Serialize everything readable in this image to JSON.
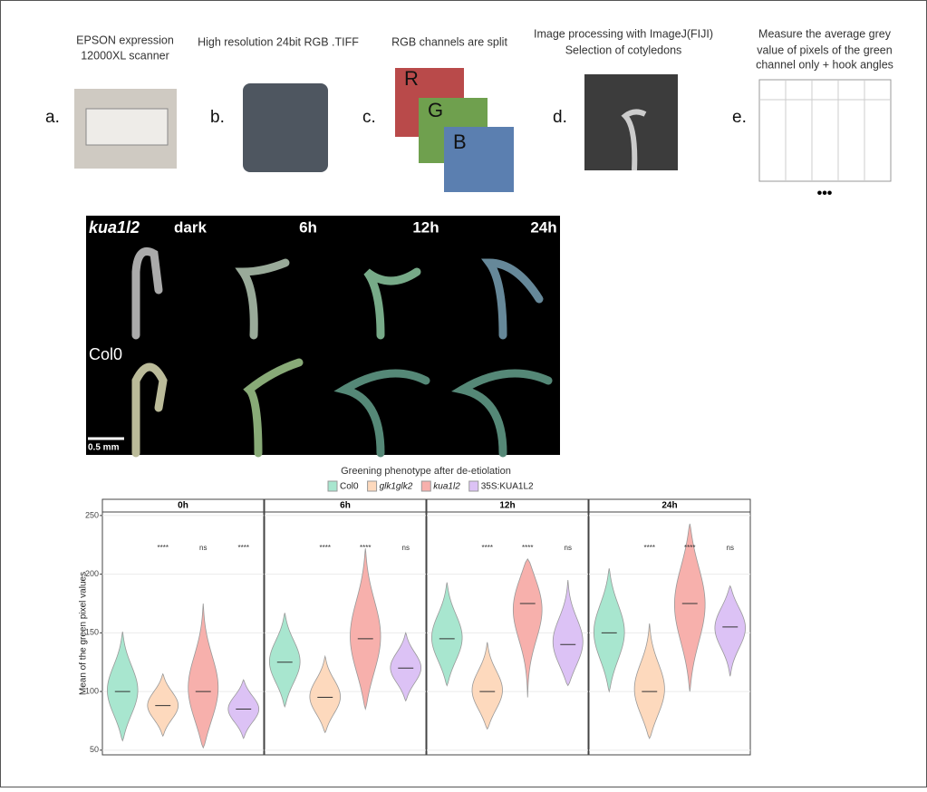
{
  "steps": [
    {
      "letter": "a.",
      "caption": [
        "EPSON expression",
        "12000XL scanner"
      ]
    },
    {
      "letter": "b.",
      "caption": [
        "High resolution 24bit RGB .TIFF"
      ]
    },
    {
      "letter": "c.",
      "caption": [
        "RGB channels are split"
      ],
      "channels": [
        "R",
        "G",
        "B"
      ]
    },
    {
      "letter": "d.",
      "caption": [
        "Image processing with ImageJ(FIJI)",
        "Selection of cotyledons"
      ]
    },
    {
      "letter": "e.",
      "caption": [
        "Measure the average grey",
        "value of pixels of the green",
        "channel only + hook angles"
      ],
      "more": "•••"
    }
  ],
  "photo": {
    "genotypes": [
      "kua1l2",
      "Col0"
    ],
    "timepoints": [
      "dark",
      "6h",
      "12h",
      "24h"
    ],
    "scale_bar": "0.5 mm"
  },
  "chart_data": {
    "type": "violin",
    "title": "Greening phenotype after de-etiolation",
    "facets": [
      "0h",
      "6h",
      "12h",
      "24h"
    ],
    "ylabel": "Mean of the green pixel values",
    "ylim": [
      46,
      253
    ],
    "yticks": [
      50,
      100,
      150,
      200,
      250
    ],
    "series": [
      {
        "name": "Col0",
        "color": "#a8e6cf",
        "min": [
          58,
          87,
          105,
          100
        ],
        "median": [
          100,
          125,
          145,
          150
        ],
        "max": [
          151,
          167,
          193,
          205
        ],
        "significance": [
          null,
          null,
          null,
          null
        ]
      },
      {
        "name": "glk1glk2",
        "color": "#fdd9bd",
        "min": [
          62,
          65,
          68,
          60
        ],
        "median": [
          88,
          95,
          100,
          100
        ],
        "max": [
          115,
          130,
          142,
          158
        ],
        "significance": [
          "****",
          "****",
          "****",
          "****"
        ]
      },
      {
        "name": "kua1l2",
        "color": "#f7b0ac",
        "min": [
          52,
          85,
          95,
          100
        ],
        "median": [
          100,
          145,
          175,
          175
        ],
        "max": [
          175,
          222,
          213,
          243
        ],
        "significance": [
          "ns",
          "****",
          "****",
          "****"
        ]
      },
      {
        "name": "35S:KUA1L2",
        "color": "#dcc2f5",
        "min": [
          60,
          92,
          105,
          113
        ],
        "median": [
          85,
          120,
          140,
          155
        ],
        "max": [
          110,
          150,
          195,
          190
        ],
        "significance": [
          "****",
          "ns",
          "ns",
          "ns"
        ]
      }
    ]
  }
}
